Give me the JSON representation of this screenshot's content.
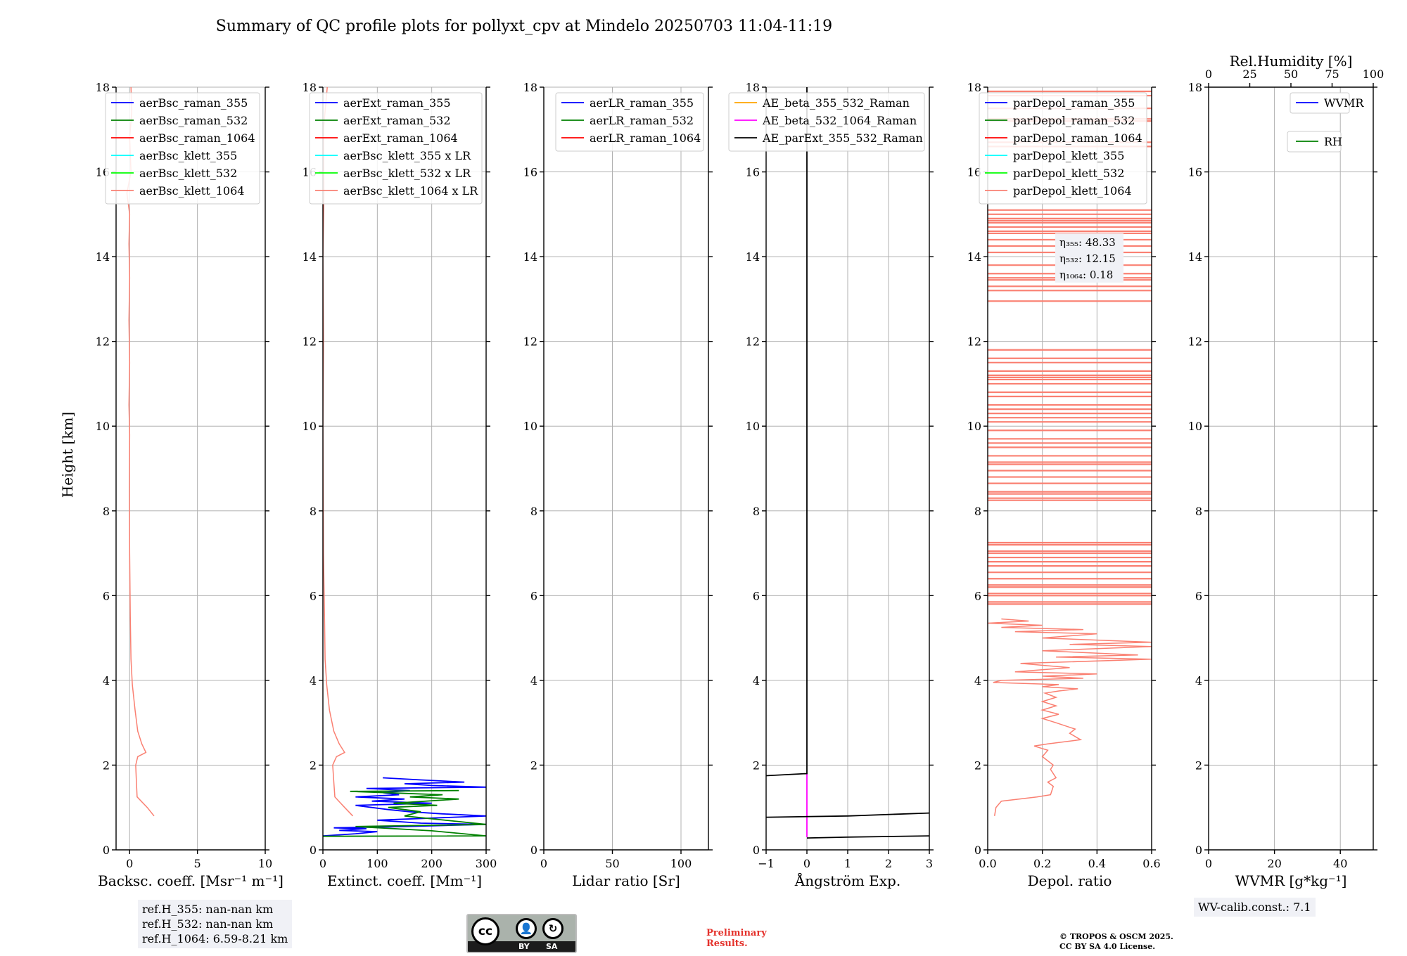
{
  "title": "Summary of QC profile plots for pollyxt_cpv at Mindelo 20250703 11:04-11:19",
  "colors": {
    "raman_355": "#0000ff",
    "raman_532": "#008000",
    "raman_1064": "#ff0000",
    "klett_355": "#00ffff",
    "klett_532": "#00ff00",
    "klett_1064": "#fa8072",
    "ae_beta_355_532": "#ffa500",
    "ae_beta_532_1064": "#ff00ff",
    "ae_parext": "#000000",
    "wvmr": "#0000ff",
    "rh": "#008000"
  },
  "chart_data": [
    {
      "type": "line",
      "name": "backscatter",
      "ylabel": "Height [km]",
      "xlabel": "Backsc. coeff. [Msr⁻¹ m⁻¹]",
      "xlim": [
        -1,
        10
      ],
      "ylim": [
        0,
        18
      ],
      "xticks": [
        "0",
        "5",
        "10"
      ],
      "xtick_values": [
        0,
        5,
        10
      ],
      "yticks": [
        "0",
        "2",
        "4",
        "6",
        "8",
        "10",
        "12",
        "14",
        "16",
        "18"
      ],
      "legend": [
        "aerBsc_raman_355",
        "aerBsc_raman_532",
        "aerBsc_raman_1064",
        "aerBsc_klett_355",
        "aerBsc_klett_532",
        "aerBsc_klett_1064"
      ],
      "series": [
        {
          "name": "aerBsc_klett_1064",
          "color_key": "klett_1064",
          "points": [
            [
              1.8,
              0.8
            ],
            [
              1.3,
              1.0
            ],
            [
              0.55,
              1.25
            ],
            [
              0.5,
              1.6
            ],
            [
              0.45,
              2.0
            ],
            [
              0.6,
              2.2
            ],
            [
              1.2,
              2.3
            ],
            [
              0.9,
              2.5
            ],
            [
              0.6,
              2.8
            ],
            [
              0.4,
              3.3
            ],
            [
              0.2,
              3.9
            ],
            [
              0.1,
              4.5
            ],
            [
              0.05,
              5.5
            ],
            [
              0.0,
              7.0
            ],
            [
              -0.02,
              8.5
            ],
            [
              0.0,
              9.8
            ],
            [
              -0.05,
              10.5
            ],
            [
              0.0,
              11.5
            ],
            [
              -0.05,
              12.5
            ],
            [
              0.0,
              13.5
            ],
            [
              -0.05,
              14.3
            ],
            [
              0.0,
              15.0
            ],
            [
              -0.2,
              15.5
            ],
            [
              0.1,
              16.0
            ],
            [
              0.0,
              16.8
            ],
            [
              0.15,
              17.4
            ],
            [
              0.1,
              18.0
            ]
          ]
        }
      ]
    },
    {
      "type": "line",
      "name": "extinction",
      "xlabel": "Extinct. coeff. [Mm⁻¹]",
      "xlim": [
        0,
        300
      ],
      "ylim": [
        0,
        18
      ],
      "xticks": [
        "0",
        "100",
        "200",
        "300"
      ],
      "xtick_values": [
        0,
        100,
        200,
        300
      ],
      "yticks": [
        "0",
        "2",
        "4",
        "6",
        "8",
        "10",
        "12",
        "14",
        "16",
        "18"
      ],
      "legend": [
        "aerExt_raman_355",
        "aerExt_raman_532",
        "aerExt_raman_1064",
        "aerBsc_klett_355 x LR",
        "aerBsc_klett_532 x LR",
        "aerBsc_klett_1064 x LR"
      ],
      "series": [
        {
          "name": "aerBsc_klett_1064 x LR",
          "color_key": "klett_1064",
          "points": [
            [
              55,
              0.8
            ],
            [
              40,
              1.0
            ],
            [
              22,
              1.25
            ],
            [
              20,
              1.6
            ],
            [
              18,
              2.0
            ],
            [
              25,
              2.2
            ],
            [
              40,
              2.3
            ],
            [
              30,
              2.5
            ],
            [
              20,
              2.8
            ],
            [
              12,
              3.3
            ],
            [
              7,
              3.9
            ],
            [
              4,
              4.5
            ],
            [
              3,
              5.5
            ],
            [
              1,
              7.0
            ],
            [
              0,
              10.0
            ],
            [
              1,
              12.0
            ],
            [
              0,
              14.0
            ],
            [
              2,
              15.5
            ],
            [
              1,
              17.0
            ],
            [
              8,
              18.0
            ]
          ]
        },
        {
          "name": "aerExt_raman_355",
          "color_key": "raman_355",
          "points": [
            [
              0,
              0.33
            ],
            [
              60,
              0.38
            ],
            [
              100,
              0.43
            ],
            [
              30,
              0.46
            ],
            [
              80,
              0.5
            ],
            [
              20,
              0.52
            ],
            [
              150,
              0.55
            ],
            [
              300,
              0.6
            ],
            [
              180,
              0.63
            ],
            [
              100,
              0.7
            ],
            [
              300,
              0.8
            ],
            [
              220,
              0.85
            ],
            [
              160,
              0.9
            ],
            [
              120,
              0.95
            ],
            [
              60,
              1.05
            ],
            [
              200,
              1.1
            ],
            [
              90,
              1.15
            ],
            [
              150,
              1.2
            ],
            [
              60,
              1.25
            ],
            [
              140,
              1.3
            ],
            [
              110,
              1.35
            ],
            [
              160,
              1.4
            ],
            [
              80,
              1.45
            ],
            [
              300,
              1.48
            ],
            [
              200,
              1.52
            ],
            [
              150,
              1.56
            ],
            [
              260,
              1.6
            ],
            [
              180,
              1.65
            ],
            [
              110,
              1.7
            ]
          ]
        },
        {
          "name": "aerExt_raman_532",
          "color_key": "raman_532",
          "points": [
            [
              0,
              0.32
            ],
            [
              300,
              0.33
            ],
            [
              200,
              0.45
            ],
            [
              60,
              0.55
            ],
            [
              300,
              0.6
            ],
            [
              150,
              0.8
            ],
            [
              180,
              0.9
            ],
            [
              120,
              1.0
            ],
            [
              210,
              1.05
            ],
            [
              130,
              1.1
            ],
            [
              250,
              1.2
            ],
            [
              160,
              1.25
            ],
            [
              220,
              1.3
            ],
            [
              50,
              1.38
            ],
            [
              250,
              1.4
            ]
          ]
        }
      ]
    },
    {
      "type": "line",
      "name": "lidar_ratio",
      "xlabel": "Lidar ratio [Sr]",
      "xlim": [
        0,
        120
      ],
      "ylim": [
        0,
        18
      ],
      "xticks": [
        "0",
        "50",
        "100"
      ],
      "xtick_values": [
        0,
        50,
        100
      ],
      "yticks": [
        "0",
        "2",
        "4",
        "6",
        "8",
        "10",
        "12",
        "14",
        "16",
        "18"
      ],
      "legend": [
        "aerLR_raman_355",
        "aerLR_raman_532",
        "aerLR_raman_1064"
      ],
      "series": []
    },
    {
      "type": "line",
      "name": "angstrom",
      "xlabel": "Ångström Exp.",
      "xlim": [
        -1,
        3
      ],
      "ylim": [
        0,
        18
      ],
      "xticks": [
        "−1",
        "0",
        "1",
        "2",
        "3"
      ],
      "xtick_values": [
        -1,
        0,
        1,
        2,
        3
      ],
      "yticks": [
        "0",
        "2",
        "4",
        "6",
        "8",
        "10",
        "12",
        "14",
        "16",
        "18"
      ],
      "legend": [
        "AE_beta_355_532_Raman",
        "AE_beta_532_1064_Raman",
        "AE_parExt_355_532_Raman"
      ],
      "series": [
        {
          "name": "AE_beta_532_1064_Raman",
          "color_key": "ae_beta_532_1064",
          "points": [
            [
              0,
              0.3
            ],
            [
              0,
              1.8
            ]
          ]
        },
        {
          "name": "AE_parExt_355_532_Raman",
          "color_key": "ae_parext",
          "points": [
            [
              0,
              18
            ],
            [
              0,
              1.8
            ],
            [
              -1,
              1.75
            ]
          ]
        },
        {
          "name": "AE_parExt_355_532_Raman (lower a)",
          "color_key": "ae_parext",
          "points": [
            [
              -1,
              0.77
            ],
            [
              1,
              0.8
            ],
            [
              3,
              0.87
            ]
          ]
        },
        {
          "name": "AE_parExt_355_532_Raman (lower b)",
          "color_key": "ae_parext",
          "points": [
            [
              0,
              0.28
            ],
            [
              1,
              0.3
            ],
            [
              3,
              0.33
            ]
          ]
        }
      ]
    },
    {
      "type": "line",
      "name": "depol",
      "xlabel": "Depol. ratio",
      "xlim": [
        0,
        0.6
      ],
      "ylim": [
        0,
        18
      ],
      "xticks": [
        "0.0",
        "0.2",
        "0.4",
        "0.6"
      ],
      "xtick_values": [
        0,
        0.2,
        0.4,
        0.6
      ],
      "yticks": [
        "0",
        "2",
        "4",
        "6",
        "8",
        "10",
        "12",
        "14",
        "16",
        "18"
      ],
      "legend": [
        "parDepol_raman_355",
        "parDepol_raman_532",
        "parDepol_raman_1064",
        "parDepol_klett_355",
        "parDepol_klett_532",
        "parDepol_klett_1064"
      ],
      "eta": {
        "eta355_label": "η₃₅₅: 48.33",
        "eta532_label": "η₅₃₂: 12.15",
        "eta1064_label": "η₁₀₆₄: 0.18"
      },
      "series": [
        {
          "name": "parDepol_klett_1064",
          "color_key": "klett_1064",
          "points": [
            [
              0.025,
              0.8
            ],
            [
              0.03,
              1.0
            ],
            [
              0.05,
              1.15
            ],
            [
              0.18,
              1.25
            ],
            [
              0.23,
              1.3
            ],
            [
              0.24,
              1.5
            ],
            [
              0.22,
              1.6
            ],
            [
              0.25,
              1.7
            ],
            [
              0.23,
              1.9
            ],
            [
              0.24,
              2.0
            ],
            [
              0.2,
              2.2
            ],
            [
              0.22,
              2.35
            ],
            [
              0.17,
              2.45
            ],
            [
              0.22,
              2.5
            ],
            [
              0.34,
              2.6
            ],
            [
              0.3,
              2.75
            ],
            [
              0.32,
              2.85
            ],
            [
              0.25,
              3.0
            ],
            [
              0.2,
              3.1
            ],
            [
              0.26,
              3.2
            ],
            [
              0.2,
              3.3
            ],
            [
              0.25,
              3.4
            ],
            [
              0.2,
              3.5
            ],
            [
              0.25,
              3.6
            ],
            [
              0.21,
              3.7
            ],
            [
              0.26,
              3.75
            ],
            [
              0.33,
              3.8
            ],
            [
              0.2,
              3.85
            ],
            [
              0.26,
              3.9
            ],
            [
              0.02,
              3.95
            ],
            [
              0.05,
              4.0
            ],
            [
              0.35,
              4.05
            ],
            [
              0.2,
              4.1
            ],
            [
              0.4,
              4.15
            ],
            [
              0.1,
              4.2
            ],
            [
              0.3,
              4.3
            ],
            [
              0.12,
              4.4
            ],
            [
              0.6,
              4.5
            ],
            [
              0.25,
              4.55
            ],
            [
              0.55,
              4.6
            ],
            [
              0.2,
              4.7
            ],
            [
              0.6,
              4.8
            ],
            [
              0.3,
              4.85
            ],
            [
              0.6,
              4.9
            ],
            [
              0.2,
              5.0
            ],
            [
              0.4,
              5.1
            ],
            [
              0.1,
              5.15
            ],
            [
              0.35,
              5.2
            ],
            [
              0.05,
              5.25
            ],
            [
              0.2,
              5.3
            ],
            [
              0.0,
              5.35
            ],
            [
              0.15,
              5.4
            ],
            [
              0.05,
              5.45
            ]
          ]
        }
      ],
      "horizontal_lines_km": [
        5.8,
        5.85,
        6.0,
        6.05,
        6.2,
        6.25,
        6.4,
        6.55,
        6.7,
        6.8,
        6.9,
        7.0,
        7.05,
        7.2,
        7.25,
        8.25,
        8.3,
        8.4,
        8.45,
        8.65,
        8.8,
        8.95,
        9.1,
        9.15,
        9.3,
        9.5,
        9.6,
        9.7,
        9.9,
        10.1,
        10.2,
        10.3,
        10.4,
        10.5,
        10.7,
        10.8,
        11.0,
        11.1,
        11.15,
        11.2,
        11.3,
        11.5,
        11.6,
        11.8,
        12.95,
        13.2,
        13.3,
        13.45,
        13.5,
        13.6,
        13.8,
        14.1,
        14.25,
        14.4,
        14.55,
        14.6,
        14.7,
        14.8,
        14.85,
        14.9,
        15.0,
        15.1,
        16.6,
        16.7,
        17.2,
        17.25,
        17.5,
        17.8,
        17.9
      ]
    },
    {
      "type": "line",
      "name": "wvmr",
      "xlabel": "WVMR [g*kg⁻¹]",
      "xlim": [
        0,
        50
      ],
      "ylim": [
        0,
        18
      ],
      "xticks": [
        "0",
        "20",
        "40"
      ],
      "xtick_values": [
        0,
        20,
        40
      ],
      "top_xlabel": "Rel.Humidity [%]",
      "top_xticks": [
        "0",
        "25",
        "50",
        "75",
        "100"
      ],
      "top_xtick_values": [
        0,
        25,
        50,
        75,
        100
      ],
      "yticks": [
        "0",
        "2",
        "4",
        "6",
        "8",
        "10",
        "12",
        "14",
        "16",
        "18"
      ],
      "legend": [
        "WVMR",
        "RH"
      ],
      "series": []
    }
  ],
  "ref_heights": {
    "line1": "ref.H_355: nan-nan km",
    "line2": "ref.H_532: nan-nan km",
    "line3": "ref.H_1064: 6.59-8.21 km"
  },
  "wv_calib": "WV-calib.const.: 7.1",
  "license": {
    "by": "BY",
    "sa": "SA",
    "cc": "cc"
  },
  "preliminary": {
    "line1": "Preliminary",
    "line2": "Results."
  },
  "copyright": {
    "line1": "© TROPOS & OSCM 2025.",
    "line2": "CC BY SA 4.0 License."
  }
}
